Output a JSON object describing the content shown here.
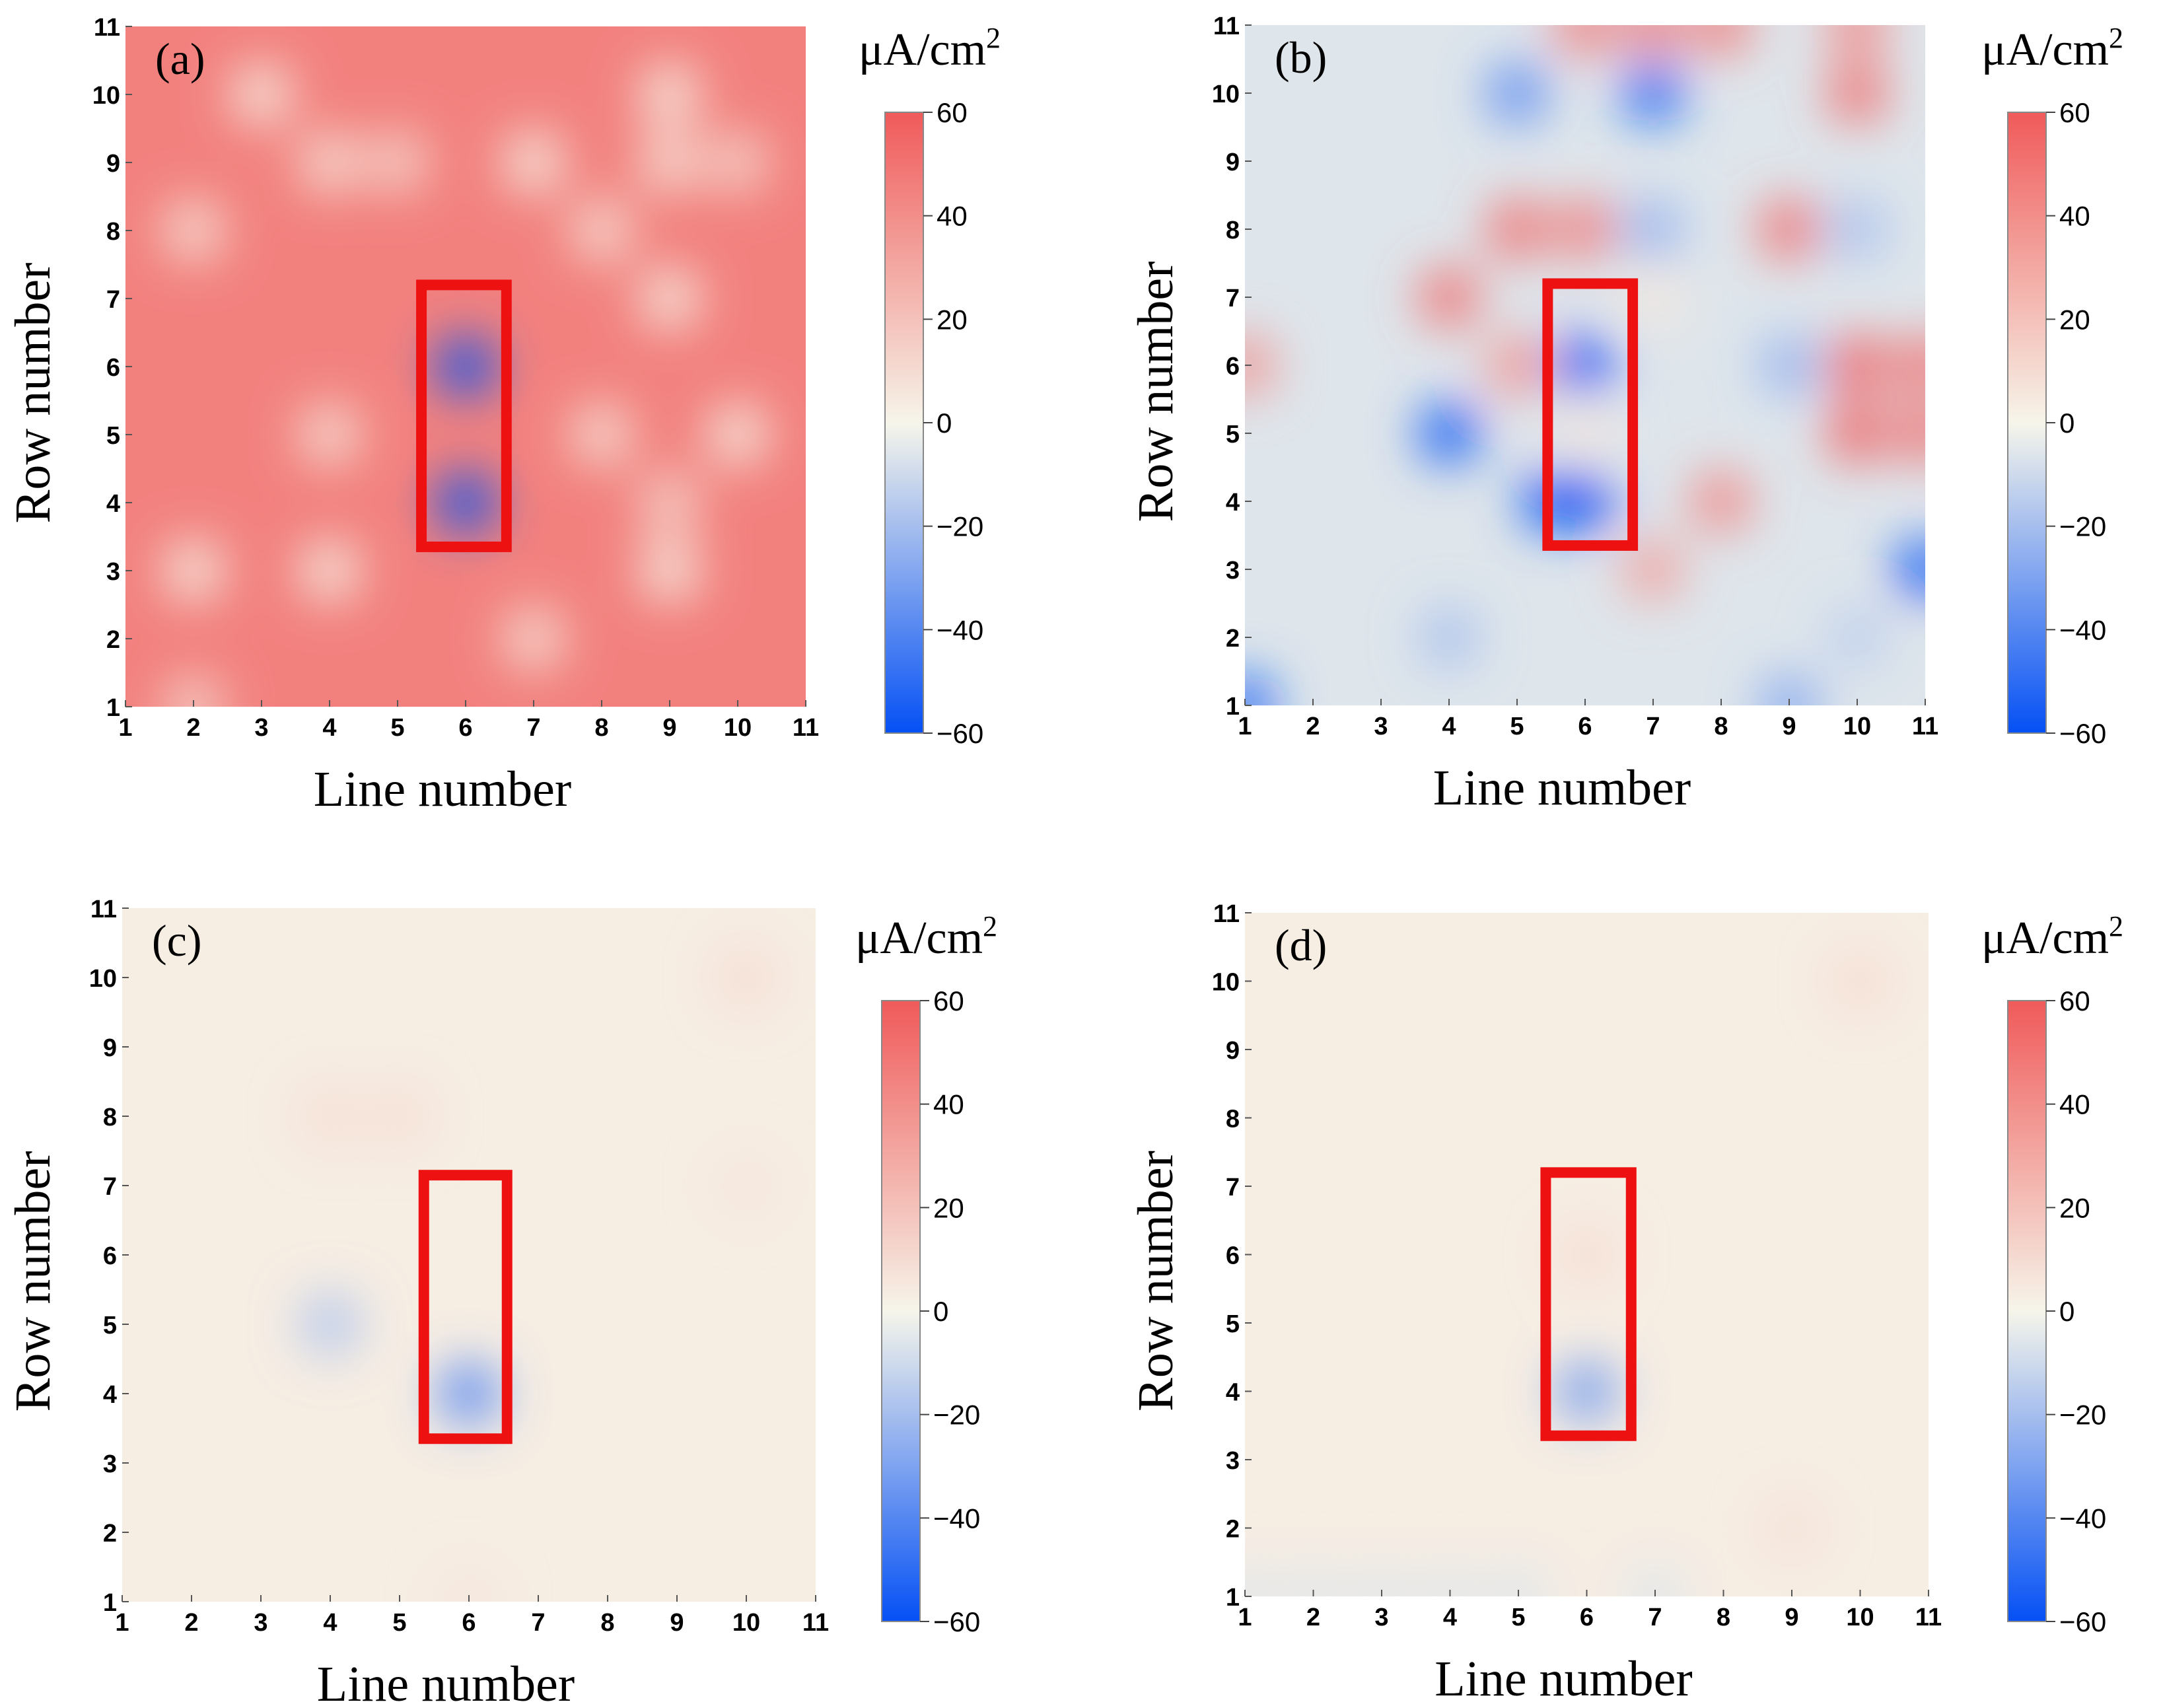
{
  "chart_data": [
    {
      "type": "heatmap",
      "panel_label": "(a)",
      "xlabel": "Line number",
      "ylabel": "Row number",
      "x_ticks": [
        1,
        2,
        3,
        4,
        5,
        6,
        7,
        8,
        9,
        10,
        11
      ],
      "y_ticks": [
        1,
        2,
        3,
        4,
        5,
        6,
        7,
        8,
        9,
        10,
        11
      ],
      "xlim": [
        1,
        11
      ],
      "ylim": [
        1,
        11
      ],
      "colorbar": {
        "unit": "μA/cm",
        "unit_superscript": "2",
        "range": [
          -60,
          60
        ],
        "ticks": [
          "60",
          "40",
          "20",
          "0",
          "−20",
          "−40",
          "−60"
        ]
      },
      "baseline": 45,
      "hotspots": [
        {
          "x": 6,
          "y": 6,
          "value": -60
        },
        {
          "x": 6,
          "y": 4,
          "value": -60
        },
        {
          "x": 3,
          "y": 10,
          "value": 0
        },
        {
          "x": 4,
          "y": 9,
          "value": 5
        },
        {
          "x": 5,
          "y": 9,
          "value": 10
        },
        {
          "x": 2,
          "y": 8,
          "value": 5
        },
        {
          "x": 7,
          "y": 9,
          "value": 0
        },
        {
          "x": 8,
          "y": 8,
          "value": 5
        },
        {
          "x": 9,
          "y": 10,
          "value": 0
        },
        {
          "x": 9,
          "y": 9,
          "value": 5
        },
        {
          "x": 10,
          "y": 9,
          "value": 10
        },
        {
          "x": 9,
          "y": 7,
          "value": 0
        },
        {
          "x": 4,
          "y": 5,
          "value": 5
        },
        {
          "x": 8,
          "y": 5,
          "value": 5
        },
        {
          "x": 10,
          "y": 5,
          "value": 0
        },
        {
          "x": 9,
          "y": 4,
          "value": 10
        },
        {
          "x": 9,
          "y": 3,
          "value": 0
        },
        {
          "x": 2,
          "y": 3,
          "value": 0
        },
        {
          "x": 4,
          "y": 3,
          "value": 0
        },
        {
          "x": 7,
          "y": 2,
          "value": 5
        },
        {
          "x": 2,
          "y": 1,
          "value": 10
        }
      ],
      "highlight_box": {
        "x0": 5.35,
        "x1": 6.6,
        "y0": 3.35,
        "y1": 7.2,
        "color": "#ee1111"
      }
    },
    {
      "type": "heatmap",
      "panel_label": "(b)",
      "xlabel": "Line number",
      "ylabel": "Row number",
      "x_ticks": [
        1,
        2,
        3,
        4,
        5,
        6,
        7,
        8,
        9,
        10,
        11
      ],
      "y_ticks": [
        1,
        2,
        3,
        4,
        5,
        6,
        7,
        8,
        9,
        10,
        11
      ],
      "xlim": [
        1,
        11
      ],
      "ylim": [
        1,
        11
      ],
      "colorbar": {
        "unit": "μA/cm",
        "unit_superscript": "2",
        "range": [
          -60,
          60
        ],
        "ticks": [
          "60",
          "40",
          "20",
          "0",
          "−20",
          "−40",
          "−60"
        ]
      },
      "baseline": -6,
      "hotspots": [
        {
          "x": 5,
          "y": 10,
          "value": -40
        },
        {
          "x": 7,
          "y": 10,
          "value": -55
        },
        {
          "x": 6,
          "y": 11,
          "value": 50
        },
        {
          "x": 7,
          "y": 11,
          "value": 50
        },
        {
          "x": 8,
          "y": 11,
          "value": 50
        },
        {
          "x": 10,
          "y": 10,
          "value": 55
        },
        {
          "x": 10,
          "y": 11,
          "value": 45
        },
        {
          "x": 4,
          "y": 7,
          "value": 55
        },
        {
          "x": 5,
          "y": 8,
          "value": 55
        },
        {
          "x": 6,
          "y": 8,
          "value": 50
        },
        {
          "x": 5,
          "y": 6,
          "value": 40
        },
        {
          "x": 9,
          "y": 8,
          "value": 55
        },
        {
          "x": 7,
          "y": 8,
          "value": -25
        },
        {
          "x": 10,
          "y": 8,
          "value": -20
        },
        {
          "x": 9,
          "y": 6,
          "value": -25
        },
        {
          "x": 10,
          "y": 6,
          "value": 60
        },
        {
          "x": 11,
          "y": 6,
          "value": 55
        },
        {
          "x": 10,
          "y": 5,
          "value": 60
        },
        {
          "x": 11,
          "y": 5,
          "value": 55
        },
        {
          "x": 1,
          "y": 6,
          "value": 40
        },
        {
          "x": 4,
          "y": 5,
          "value": -60
        },
        {
          "x": 6,
          "y": 6,
          "value": -60
        },
        {
          "x": 6,
          "y": 5,
          "value": 5
        },
        {
          "x": 6,
          "y": 4,
          "value": -60
        },
        {
          "x": 5.5,
          "y": 4,
          "value": -60
        },
        {
          "x": 8,
          "y": 4,
          "value": 45
        },
        {
          "x": 7,
          "y": 3,
          "value": 35
        },
        {
          "x": 11,
          "y": 3,
          "value": -60
        },
        {
          "x": 10,
          "y": 2,
          "value": -15
        },
        {
          "x": 9,
          "y": 1,
          "value": -30
        },
        {
          "x": 1,
          "y": 1,
          "value": -55
        },
        {
          "x": 4,
          "y": 2,
          "value": -20
        },
        {
          "x": 7,
          "y": 7,
          "value": 5
        }
      ],
      "highlight_box": {
        "x0": 5.45,
        "x1": 6.7,
        "y0": 3.35,
        "y1": 7.2,
        "color": "#ee1111"
      }
    },
    {
      "type": "heatmap",
      "panel_label": "(c)",
      "xlabel": "Line number",
      "ylabel": "Row number",
      "x_ticks": [
        1,
        2,
        3,
        4,
        5,
        6,
        7,
        8,
        9,
        10,
        11
      ],
      "y_ticks": [
        1,
        2,
        3,
        4,
        5,
        6,
        7,
        8,
        9,
        10,
        11
      ],
      "xlim": [
        1,
        11
      ],
      "ylim": [
        1,
        11
      ],
      "colorbar": {
        "unit": "μA/cm",
        "unit_superscript": "2",
        "range": [
          -60,
          60
        ],
        "ticks": [
          "60",
          "40",
          "20",
          "0",
          "−20",
          "−40",
          "−60"
        ]
      },
      "baseline": 3,
      "hotspots": [
        {
          "x": 4,
          "y": 5,
          "value": -18
        },
        {
          "x": 6,
          "y": 4,
          "value": -42
        },
        {
          "x": 4,
          "y": 8,
          "value": 9
        },
        {
          "x": 5,
          "y": 8,
          "value": 9
        },
        {
          "x": 10,
          "y": 10,
          "value": 10
        },
        {
          "x": 10,
          "y": 7,
          "value": 6
        },
        {
          "x": 6,
          "y": 1,
          "value": 6
        }
      ],
      "highlight_box": {
        "x0": 5.35,
        "x1": 6.55,
        "y0": 3.35,
        "y1": 7.15,
        "color": "#ee1111"
      }
    },
    {
      "type": "heatmap",
      "panel_label": "(d)",
      "xlabel": "Line number",
      "ylabel": "Row number",
      "x_ticks": [
        1,
        2,
        3,
        4,
        5,
        6,
        7,
        8,
        9,
        10,
        11
      ],
      "y_ticks": [
        1,
        2,
        3,
        4,
        5,
        6,
        7,
        8,
        9,
        10,
        11
      ],
      "xlim": [
        1,
        11
      ],
      "ylim": [
        1,
        11
      ],
      "colorbar": {
        "unit": "μA/cm",
        "unit_superscript": "2",
        "range": [
          -60,
          60
        ],
        "ticks": [
          "60",
          "40",
          "20",
          "0",
          "−20",
          "−40",
          "−60"
        ]
      },
      "baseline": 3,
      "hotspots": [
        {
          "x": 6,
          "y": 4,
          "value": -35
        },
        {
          "x": 6,
          "y": 6,
          "value": 10
        },
        {
          "x": 10,
          "y": 10,
          "value": 10
        },
        {
          "x": 9,
          "y": 2,
          "value": 8
        },
        {
          "x": 1,
          "y": 1,
          "value": -6
        },
        {
          "x": 3,
          "y": 1,
          "value": -6
        },
        {
          "x": 5,
          "y": 1,
          "value": -6
        },
        {
          "x": 7,
          "y": 1,
          "value": -6
        },
        {
          "x": 2,
          "y": 1,
          "value": -6
        },
        {
          "x": 4,
          "y": 1,
          "value": -6
        }
      ],
      "highlight_box": {
        "x0": 5.4,
        "x1": 6.65,
        "y0": 3.35,
        "y1": 7.2,
        "color": "#ee1111"
      }
    }
  ]
}
